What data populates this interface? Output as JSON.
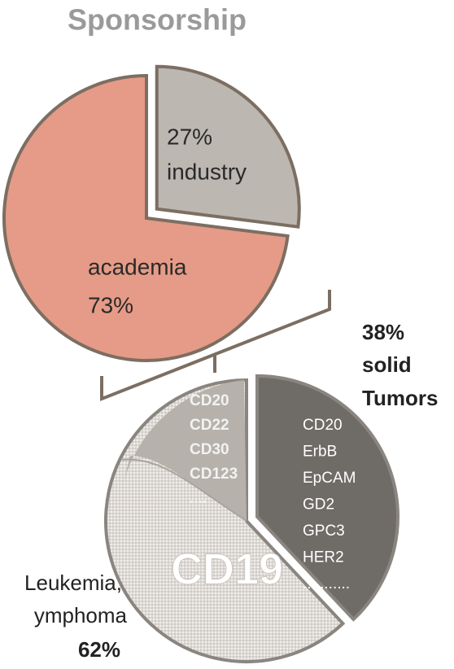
{
  "chart_data": [
    {
      "type": "pie",
      "title": "Sponsorship",
      "categories": [
        "industry",
        "academia"
      ],
      "values": [
        27,
        73
      ],
      "value_labels": [
        "27%",
        "73%"
      ],
      "colors": [
        "#bcb7b1",
        "#e59b87"
      ],
      "exploded": [
        true,
        false
      ]
    },
    {
      "type": "pie",
      "categories": [
        [
          "solid",
          "Tumors"
        ],
        [
          "Leukemia,",
          "ymphoma"
        ]
      ],
      "values": [
        38,
        62
      ],
      "value_labels": [
        "38%",
        "62%"
      ],
      "colors": [
        "#6f6b67",
        "#d9d5d0"
      ],
      "exploded": [
        true,
        false
      ],
      "solid_targets": [
        "CD20",
        "ErbB",
        "EpCAM",
        "GD2",
        "GPC3",
        "HER2",
        "..........."
      ],
      "blood_targets": [
        "CD20",
        "CD22",
        "CD30",
        "CD123",
        "...."
      ],
      "main_target": "CD19"
    }
  ]
}
